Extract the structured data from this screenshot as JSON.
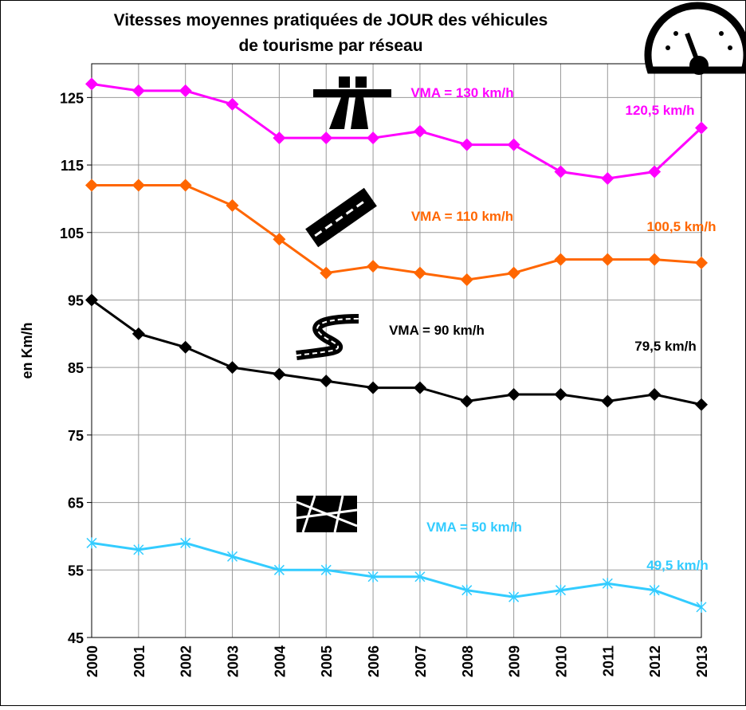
{
  "chart_data": {
    "type": "line",
    "title": [
      "Vitesses moyennes pratiquées de JOUR des véhicules",
      "de tourisme par réseau"
    ],
    "y_label": "en Km/h",
    "categories": [
      "2000",
      "2001",
      "2002",
      "2003",
      "2004",
      "2005",
      "2006",
      "2007",
      "2008",
      "2009",
      "2010",
      "2011",
      "2012",
      "2013"
    ],
    "series": [
      {
        "color": "#ff00ff",
        "marker": "diamond",
        "values": [
          127,
          126,
          126,
          124,
          119,
          119,
          119,
          120,
          118,
          118,
          114,
          113,
          114,
          120.5
        ]
      },
      {
        "color": "#ff6600",
        "marker": "diamond",
        "values": [
          112,
          112,
          112,
          109,
          104,
          99,
          100,
          99,
          98,
          99,
          101,
          101,
          101,
          100.5
        ]
      },
      {
        "color": "#000000",
        "marker": "diamond",
        "values": [
          95,
          90,
          88,
          85,
          84,
          83,
          82,
          82,
          80,
          81,
          81,
          80,
          81,
          79.5
        ]
      },
      {
        "color": "#33ccff",
        "marker": "star",
        "values": [
          59,
          58,
          59,
          57,
          55,
          55,
          54,
          54,
          52,
          51,
          52,
          53,
          52,
          49.5
        ]
      }
    ],
    "annotations": [
      {
        "text": "VMA = 130 km/h",
        "color": "#ff00ff"
      },
      {
        "text": "120,5 km/h",
        "color": "#ff00ff"
      },
      {
        "text": "VMA = 110 km/h",
        "color": "#ff6600"
      },
      {
        "text": "100,5 km/h",
        "color": "#ff6600"
      },
      {
        "text": "VMA = 90 km/h",
        "color": "#000000"
      },
      {
        "text": "79,5 km/h",
        "color": "#000000"
      },
      {
        "text": "VMA = 50 km/h",
        "color": "#33ccff"
      },
      {
        "text": "49,5 km/h",
        "color": "#33ccff"
      }
    ],
    "ylim": [
      45,
      130
    ],
    "yticks": [
      45,
      55,
      65,
      75,
      85,
      95,
      105,
      115,
      125
    ],
    "grid": true
  }
}
